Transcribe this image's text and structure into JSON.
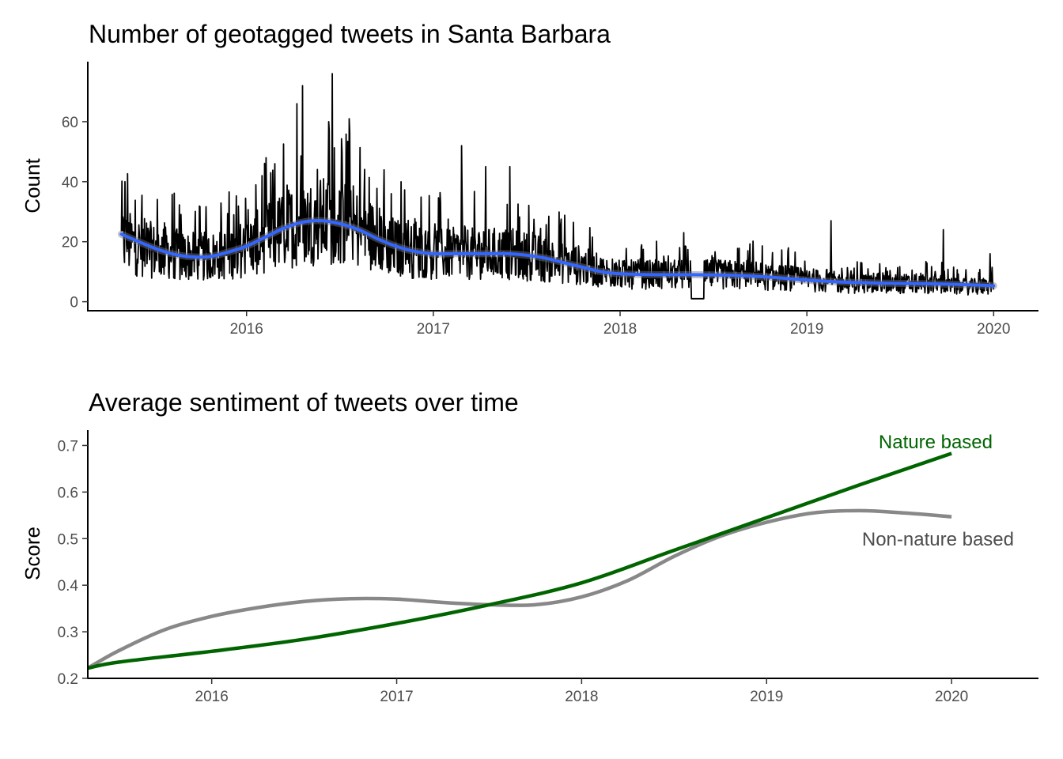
{
  "chart_data": [
    {
      "type": "line",
      "title": "Number of geotagged tweets in Santa Barbara",
      "xlabel": "",
      "ylabel": "Count",
      "x_ticks": [
        "2016",
        "2017",
        "2018",
        "2019",
        "2020"
      ],
      "y_ticks": [
        "0",
        "20",
        "40",
        "60"
      ],
      "xlim": [
        2015.15,
        2020.24
      ],
      "ylim": [
        -3,
        80
      ],
      "grid": false,
      "series": [
        {
          "kind": "daily-count",
          "color": "#000000",
          "x": [
            2015.33,
            2015.4,
            2015.5,
            2015.6,
            2015.7,
            2015.8,
            2015.9,
            2016.0,
            2016.1,
            2016.2,
            2016.3,
            2016.4,
            2016.5,
            2016.6,
            2016.7,
            2016.8,
            2016.9,
            2017.0,
            2017.1,
            2017.2,
            2017.3,
            2017.4,
            2017.5,
            2017.6,
            2017.7,
            2017.8,
            2017.9,
            2018.0,
            2018.1,
            2018.2,
            2018.3,
            2018.4,
            2018.5,
            2018.6,
            2018.7,
            2018.8,
            2018.9,
            2019.0,
            2019.1,
            2019.2,
            2019.3,
            2019.4,
            2019.5,
            2019.6,
            2019.7,
            2019.8,
            2019.9,
            2020.0
          ],
          "y": [
            20,
            19,
            17,
            16,
            15,
            15,
            16,
            18,
            21,
            24,
            26,
            27,
            26,
            24,
            21,
            18,
            17,
            16,
            16,
            16,
            16,
            16,
            15,
            14,
            13,
            12,
            10,
            9,
            9,
            9,
            9,
            9,
            9,
            9,
            9,
            8,
            8,
            7,
            7,
            6,
            6,
            6,
            6,
            6,
            6,
            5,
            5,
            5
          ],
          "peaks": [
            [
              2015.35,
              40
            ],
            [
              2016.15,
              46
            ],
            [
              2016.27,
              66
            ],
            [
              2016.3,
              72
            ],
            [
              2016.44,
              60
            ],
            [
              2016.46,
              76
            ],
            [
              2016.55,
              61
            ],
            [
              2017.15,
              52
            ],
            [
              2017.28,
              45
            ],
            [
              2017.41,
              45
            ],
            [
              2018.34,
              23
            ],
            [
              2019.13,
              27
            ],
            [
              2019.73,
              24
            ],
            [
              2019.98,
              16
            ]
          ],
          "flat_segments": [
            [
              2018.38,
              2018.45,
              1
            ]
          ]
        },
        {
          "kind": "smoothed",
          "color": "#3366ff",
          "x": [
            2015.33,
            2015.5,
            2015.6,
            2015.7,
            2015.8,
            2015.9,
            2016.0,
            2016.1,
            2016.2,
            2016.3,
            2016.4,
            2016.5,
            2016.6,
            2016.7,
            2016.8,
            2016.9,
            2017.0,
            2017.1,
            2017.2,
            2017.3,
            2017.4,
            2017.5,
            2017.6,
            2017.7,
            2017.8,
            2017.9,
            2018.0,
            2018.2,
            2018.4,
            2018.6,
            2018.8,
            2019.0,
            2019.2,
            2019.4,
            2019.6,
            2019.8,
            2020.0
          ],
          "y": [
            22.5,
            18,
            16,
            15,
            15,
            16.5,
            18.5,
            21.5,
            24.5,
            26.5,
            27,
            26,
            24,
            21,
            18.5,
            16.8,
            16,
            16,
            16,
            16,
            16,
            15.5,
            14.5,
            13,
            11.5,
            10,
            9.3,
            9,
            9,
            8.8,
            8.2,
            7.2,
            6.5,
            6.2,
            6,
            5.8,
            5.3
          ]
        }
      ]
    },
    {
      "type": "line",
      "title": "Average sentiment of tweets over time",
      "xlabel": "",
      "ylabel": "Score",
      "x_ticks": [
        "2016",
        "2017",
        "2018",
        "2019",
        "2020"
      ],
      "y_ticks": [
        "0.2",
        "0.3",
        "0.4",
        "0.5",
        "0.6",
        "0.7"
      ],
      "xlim": [
        2015.33,
        2020.47
      ],
      "ylim": [
        0.2,
        0.733
      ],
      "grid": false,
      "series": [
        {
          "name": "Nature based",
          "color": "#006400",
          "x": [
            2015.33,
            2015.5,
            2016.0,
            2016.5,
            2017.0,
            2017.5,
            2018.0,
            2018.5,
            2019.0,
            2019.5,
            2020.0
          ],
          "y": [
            0.222,
            0.235,
            0.258,
            0.284,
            0.318,
            0.358,
            0.405,
            0.475,
            0.545,
            0.615,
            0.683
          ]
        },
        {
          "name": "Non-nature based",
          "color": "#888888",
          "x": [
            2015.33,
            2015.5,
            2015.75,
            2016.0,
            2016.25,
            2016.5,
            2016.75,
            2017.0,
            2017.25,
            2017.5,
            2017.75,
            2018.0,
            2018.25,
            2018.5,
            2018.75,
            2019.0,
            2019.25,
            2019.5,
            2019.75,
            2020.0
          ],
          "y": [
            0.222,
            0.26,
            0.305,
            0.333,
            0.352,
            0.365,
            0.371,
            0.37,
            0.363,
            0.358,
            0.358,
            0.375,
            0.41,
            0.462,
            0.505,
            0.535,
            0.555,
            0.56,
            0.555,
            0.547
          ]
        }
      ]
    }
  ]
}
